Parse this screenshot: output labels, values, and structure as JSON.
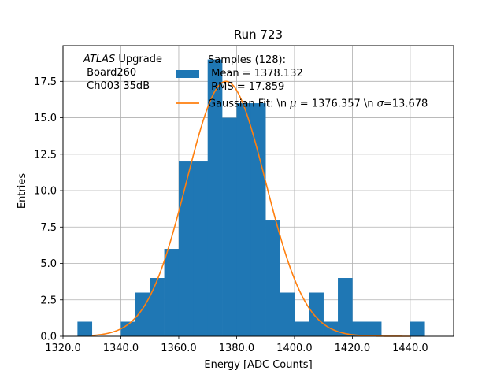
{
  "chart_data": {
    "type": "bar",
    "title": "Run 723",
    "xlabel": "Energy [ADC Counts]",
    "ylabel": "Entries",
    "xlim": [
      1320,
      1455
    ],
    "ylim": [
      0,
      19.95
    ],
    "x_ticks": [
      1320,
      1340,
      1360,
      1380,
      1400,
      1420,
      1440
    ],
    "x_tick_labels": [
      "1320.0",
      "1340.0",
      "1360.0",
      "1380.0",
      "1400.0",
      "1420.0",
      "1440.0"
    ],
    "y_ticks": [
      0,
      2.5,
      5,
      7.5,
      10,
      12.5,
      15,
      17.5
    ],
    "y_tick_labels": [
      "0.0",
      "2.5",
      "5.0",
      "7.5",
      "10.0",
      "12.5",
      "15.0",
      "17.5"
    ],
    "grid": true,
    "legend_position": "top-center",
    "histogram": {
      "name": "Samples (128):\n Mean = 1378.132\n RMS = 17.859",
      "legend_lines": [
        "Samples (128):",
        " Mean = 1378.132",
        " RMS = 17.859"
      ],
      "color": "#1f77b4",
      "bin_edges": [
        1325,
        1330,
        1335,
        1340,
        1345,
        1350,
        1355,
        1360,
        1365,
        1370,
        1375,
        1380,
        1385,
        1390,
        1395,
        1400,
        1405,
        1410,
        1415,
        1420,
        1425,
        1430,
        1435,
        1440,
        1445
      ],
      "counts": [
        1,
        0,
        0,
        1,
        3,
        4,
        6,
        12,
        12,
        19,
        15,
        16,
        16,
        8,
        3,
        1,
        3,
        1,
        4,
        1,
        1,
        0,
        0,
        1
      ]
    },
    "fit": {
      "name": "Gaussian Fit: \\n $\\mu$ = 1376.357 \\n $\\sigma$=13.678",
      "legend_parts": [
        "Gaussian Fit: \\n ",
        "μ",
        " = 1376.357 \\n ",
        "σ",
        "=13.678"
      ],
      "color": "#ff7f0e",
      "mu": 1376.357,
      "sigma": 13.678,
      "amplitude": 17.5,
      "x_range": [
        1330,
        1440
      ]
    },
    "annotation": {
      "lines": [
        "ATLAS Upgrade",
        " Board260",
        " Ch003 35dB"
      ],
      "italic_word": "ATLAS"
    }
  }
}
